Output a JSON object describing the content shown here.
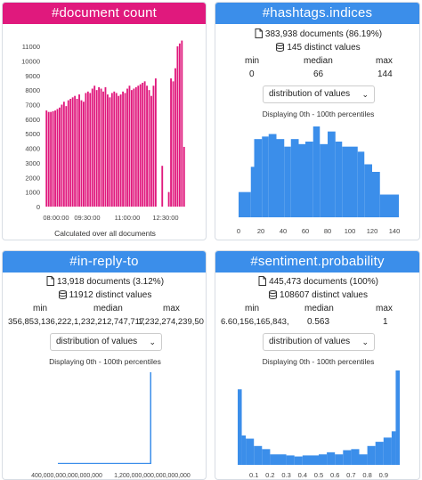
{
  "cards": {
    "doc_count": {
      "title": "#document count",
      "footer": "Calculated over all documents",
      "colors": {
        "header": "#e0197d",
        "bars": "#e0197d"
      }
    },
    "hashtags": {
      "title": "#hashtags.indices",
      "documents": "383,938 documents (86.19%)",
      "distinct": "145 distinct values",
      "min_label": "min",
      "median_label": "median",
      "max_label": "max",
      "min": "0",
      "median": "66",
      "max": "144",
      "select": "distribution of values",
      "percentiles": "Displaying 0th - 100th percentiles"
    },
    "reply": {
      "title": "#in-reply-to",
      "documents": "13,918 documents (3.12%)",
      "distinct": "11912 distinct values",
      "min_label": "min",
      "median_label": "median",
      "max_label": "max",
      "min": "356,853,136,222,",
      "median": "1,232,212,747,717",
      "max": "1,232,274,239,50",
      "select": "distribution of values",
      "percentiles": "Displaying 0th - 100th percentiles"
    },
    "sentiment": {
      "title": "#sentiment.probability",
      "documents": "445,473 documents (100%)",
      "distinct": "108607 distinct values",
      "min_label": "min",
      "median_label": "median",
      "max_label": "max",
      "min": "6.60,156,165,843,",
      "median": "0.563",
      "max": "1",
      "select": "distribution of values",
      "percentiles": "Displaying 0th - 100th percentiles"
    }
  },
  "chart_data": [
    {
      "id": "doc_count",
      "type": "bar",
      "x_ticks": [
        "08:00:00",
        "09:30:00",
        "11:00:00",
        "12:30:00"
      ],
      "y_ticks": [
        0,
        1000,
        2000,
        3000,
        4000,
        5000,
        6000,
        7000,
        8000,
        9000,
        10000,
        11000
      ],
      "ylim": [
        0,
        11800
      ],
      "values": [
        6600,
        6500,
        6500,
        6550,
        6600,
        6700,
        6800,
        7000,
        7200,
        6900,
        7300,
        7400,
        7500,
        7600,
        7400,
        7700,
        7300,
        7200,
        7800,
        7900,
        7800,
        8100,
        8300,
        8000,
        8200,
        8100,
        7900,
        8200,
        7700,
        7500,
        7800,
        7900,
        7800,
        7600,
        7700,
        7900,
        7800,
        8100,
        8300,
        8000,
        8100,
        8200,
        8300,
        8400,
        8500,
        8600,
        8300,
        8000,
        7600,
        8300,
        8800,
        0,
        0,
        2800,
        0,
        0,
        1000,
        8800,
        8600,
        9500,
        11000,
        11200,
        11400,
        4100
      ]
    },
    {
      "id": "hashtags",
      "type": "bar",
      "x_ticks": [
        0,
        20,
        40,
        60,
        80,
        100,
        120,
        140
      ],
      "xlim": [
        0,
        144
      ],
      "bins": [
        [
          0,
          11,
          10
        ],
        [
          11,
          14,
          20
        ],
        [
          14,
          21,
          31
        ],
        [
          21,
          27,
          32
        ],
        [
          27,
          34,
          33
        ],
        [
          34,
          41,
          31
        ],
        [
          41,
          47,
          28
        ],
        [
          47,
          54,
          31
        ],
        [
          54,
          60,
          29
        ],
        [
          60,
          67,
          30
        ],
        [
          67,
          73,
          36
        ],
        [
          73,
          80,
          29
        ],
        [
          80,
          87,
          34
        ],
        [
          87,
          93,
          30
        ],
        [
          93,
          100,
          28
        ],
        [
          100,
          107,
          28
        ],
        [
          107,
          113,
          26
        ],
        [
          113,
          120,
          21
        ],
        [
          120,
          127,
          18
        ],
        [
          127,
          144,
          9
        ]
      ]
    },
    {
      "id": "reply",
      "type": "bar",
      "x_ticks": [
        "400,000,000,000,000,000",
        "1,200,000,000,000,000,000"
      ],
      "xlim": [
        0,
        1250
      ],
      "bins": [
        [
          40,
          1150,
          1
        ],
        [
          1150,
          1190,
          1
        ],
        [
          1190,
          1232,
          100
        ]
      ]
    },
    {
      "id": "sentiment",
      "type": "bar",
      "x_ticks": [
        "0.1",
        "0.2",
        "0.3",
        "0.4",
        "0.5",
        "0.6",
        "0.7",
        "0.8",
        "0.9"
      ],
      "xlim": [
        0,
        1
      ],
      "bins": [
        [
          0,
          0.025,
          72
        ],
        [
          0.025,
          0.05,
          28
        ],
        [
          0.05,
          0.1,
          25
        ],
        [
          0.1,
          0.15,
          18
        ],
        [
          0.15,
          0.2,
          15
        ],
        [
          0.2,
          0.3,
          10
        ],
        [
          0.3,
          0.35,
          9
        ],
        [
          0.35,
          0.4,
          8
        ],
        [
          0.4,
          0.5,
          9
        ],
        [
          0.5,
          0.55,
          10
        ],
        [
          0.55,
          0.6,
          12
        ],
        [
          0.6,
          0.65,
          10
        ],
        [
          0.65,
          0.7,
          14
        ],
        [
          0.7,
          0.75,
          15
        ],
        [
          0.75,
          0.8,
          10
        ],
        [
          0.8,
          0.85,
          18
        ],
        [
          0.85,
          0.9,
          22
        ],
        [
          0.9,
          0.95,
          26
        ],
        [
          0.95,
          0.975,
          32
        ],
        [
          0.975,
          1,
          90
        ]
      ]
    }
  ]
}
